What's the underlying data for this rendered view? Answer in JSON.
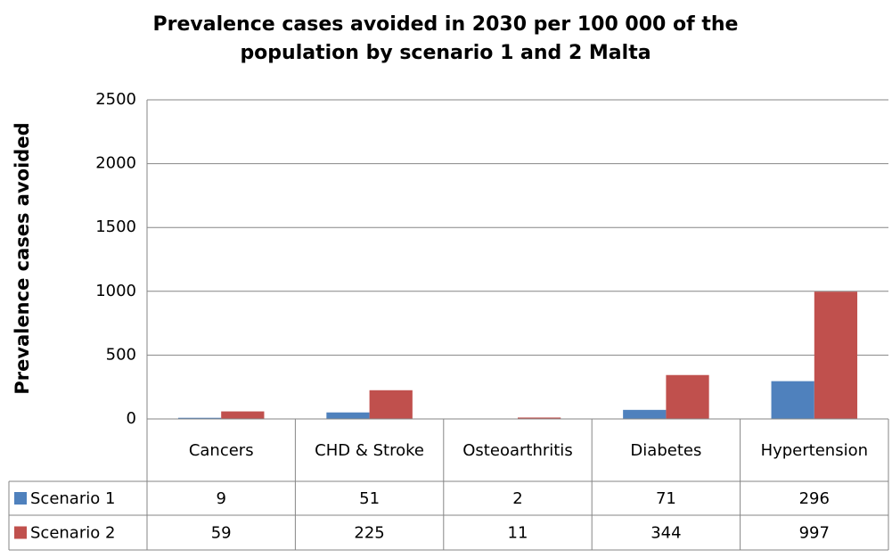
{
  "chart_data": {
    "type": "bar",
    "title": "Prevalence cases avoided in 2030 per 100 000 of the population by scenario 1 and 2 Malta",
    "y_label": "Prevalence cases avoided",
    "categories": [
      "Cancers",
      "CHD & Stroke",
      "Osteoarthritis",
      "Diabetes",
      "Hypertension"
    ],
    "series": [
      {
        "name": "Scenario 1",
        "color": "#4f81bd",
        "values": [
          9,
          51,
          2,
          71,
          296
        ]
      },
      {
        "name": "Scenario 2",
        "color": "#c0504d",
        "values": [
          59,
          225,
          11,
          344,
          997
        ]
      }
    ],
    "ylim": [
      0,
      2500
    ],
    "yticks": [
      0,
      500,
      1000,
      1500,
      2000,
      2500
    ],
    "grid": true
  }
}
